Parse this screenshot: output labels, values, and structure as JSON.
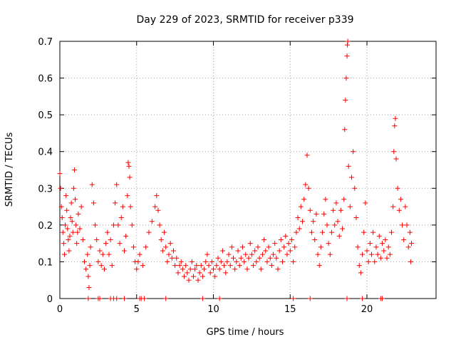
{
  "chart_data": {
    "type": "scatter",
    "title": "Day 229 of 2023, SRMTID for receiver p339",
    "xlabel": "GPS time / hours",
    "ylabel": "SRMTID / TECUs",
    "xlim": [
      0,
      24.5
    ],
    "ylim": [
      0,
      0.7
    ],
    "grid": true,
    "marker": "plus",
    "color": "#ff0000",
    "x_ticks": [
      0,
      5,
      10,
      15,
      20
    ],
    "x_tick_labels": [
      "0",
      "5",
      "10",
      "15",
      "20"
    ],
    "y_ticks": [
      0,
      0.1,
      0.2,
      0.3,
      0.4,
      0.5,
      0.6,
      0.7
    ],
    "y_tick_labels": [
      "0",
      "0.1",
      "0.2",
      "0.3",
      "0.4",
      "0.5",
      "0.6",
      "0.7"
    ],
    "series": [
      {
        "name": "SRMTID",
        "points": [
          [
            0.0,
            0.34
          ],
          [
            0.05,
            0.3
          ],
          [
            0.1,
            0.25
          ],
          [
            0.15,
            0.22
          ],
          [
            0.2,
            0.18
          ],
          [
            0.25,
            0.15
          ],
          [
            0.3,
            0.12
          ],
          [
            0.35,
            0.2
          ],
          [
            0.4,
            0.28
          ],
          [
            0.45,
            0.24
          ],
          [
            0.5,
            0.19
          ],
          [
            0.55,
            0.16
          ],
          [
            0.6,
            0.13
          ],
          [
            0.65,
            0.17
          ],
          [
            0.7,
            0.22
          ],
          [
            0.75,
            0.26
          ],
          [
            0.8,
            0.21
          ],
          [
            0.85,
            0.18
          ],
          [
            0.9,
            0.3
          ],
          [
            0.95,
            0.35
          ],
          [
            1.0,
            0.27
          ],
          [
            1.05,
            0.2
          ],
          [
            1.1,
            0.15
          ],
          [
            1.15,
            0.18
          ],
          [
            1.2,
            0.23
          ],
          [
            1.3,
            0.19
          ],
          [
            1.4,
            0.25
          ],
          [
            1.5,
            0.16
          ],
          [
            1.6,
            0.1
          ],
          [
            1.7,
            0.08
          ],
          [
            1.8,
            0.12
          ],
          [
            1.85,
            0.06
          ],
          [
            1.9,
            0.03
          ],
          [
            1.95,
            0.09
          ],
          [
            2.0,
            0.14
          ],
          [
            2.1,
            0.31
          ],
          [
            2.2,
            0.26
          ],
          [
            2.3,
            0.2
          ],
          [
            2.4,
            0.16
          ],
          [
            2.5,
            0.1
          ],
          [
            2.6,
            0.13
          ],
          [
            2.7,
            0.09
          ],
          [
            2.8,
            0.12
          ],
          [
            2.9,
            0.08
          ],
          [
            3.0,
            0.15
          ],
          [
            3.1,
            0.18
          ],
          [
            3.2,
            0.12
          ],
          [
            3.3,
            0.16
          ],
          [
            3.4,
            0.09
          ],
          [
            3.5,
            0.2
          ],
          [
            3.6,
            0.26
          ],
          [
            3.7,
            0.31
          ],
          [
            3.8,
            0.2
          ],
          [
            3.9,
            0.15
          ],
          [
            4.0,
            0.22
          ],
          [
            4.1,
            0.25
          ],
          [
            4.2,
            0.13
          ],
          [
            4.3,
            0.17
          ],
          [
            4.4,
            0.28
          ],
          [
            4.45,
            0.37
          ],
          [
            4.5,
            0.36
          ],
          [
            4.55,
            0.33
          ],
          [
            4.6,
            0.25
          ],
          [
            4.7,
            0.2
          ],
          [
            4.8,
            0.14
          ],
          [
            4.9,
            0.1
          ],
          [
            5.0,
            0.08
          ],
          [
            5.1,
            0.1
          ],
          [
            5.2,
            0.12
          ],
          [
            5.4,
            0.09
          ],
          [
            5.6,
            0.14
          ],
          [
            5.8,
            0.18
          ],
          [
            6.0,
            0.21
          ],
          [
            6.2,
            0.25
          ],
          [
            6.3,
            0.28
          ],
          [
            6.4,
            0.24
          ],
          [
            6.5,
            0.2
          ],
          [
            6.6,
            0.16
          ],
          [
            6.7,
            0.13
          ],
          [
            6.8,
            0.18
          ],
          [
            6.9,
            0.14
          ],
          [
            7.0,
            0.1
          ],
          [
            7.1,
            0.12
          ],
          [
            7.2,
            0.15
          ],
          [
            7.3,
            0.11
          ],
          [
            7.4,
            0.13
          ],
          [
            7.5,
            0.09
          ],
          [
            7.6,
            0.11
          ],
          [
            7.7,
            0.07
          ],
          [
            7.8,
            0.09
          ],
          [
            7.9,
            0.1
          ],
          [
            8.0,
            0.08
          ],
          [
            8.1,
            0.06
          ],
          [
            8.2,
            0.09
          ],
          [
            8.3,
            0.07
          ],
          [
            8.4,
            0.05
          ],
          [
            8.5,
            0.08
          ],
          [
            8.6,
            0.1
          ],
          [
            8.7,
            0.06
          ],
          [
            8.8,
            0.08
          ],
          [
            8.9,
            0.09
          ],
          [
            9.0,
            0.05
          ],
          [
            9.1,
            0.07
          ],
          [
            9.2,
            0.09
          ],
          [
            9.3,
            0.06
          ],
          [
            9.4,
            0.08
          ],
          [
            9.5,
            0.1
          ],
          [
            9.6,
            0.12
          ],
          [
            9.7,
            0.09
          ],
          [
            9.8,
            0.07
          ],
          [
            9.9,
            0.1
          ],
          [
            10.0,
            0.08
          ],
          [
            10.1,
            0.06
          ],
          [
            10.2,
            0.09
          ],
          [
            10.3,
            0.11
          ],
          [
            10.4,
            0.08
          ],
          [
            10.5,
            0.1
          ],
          [
            10.6,
            0.13
          ],
          [
            10.7,
            0.09
          ],
          [
            10.8,
            0.07
          ],
          [
            10.9,
            0.1
          ],
          [
            11.0,
            0.12
          ],
          [
            11.1,
            0.09
          ],
          [
            11.2,
            0.14
          ],
          [
            11.3,
            0.11
          ],
          [
            11.4,
            0.08
          ],
          [
            11.5,
            0.1
          ],
          [
            11.6,
            0.13
          ],
          [
            11.7,
            0.09
          ],
          [
            11.8,
            0.11
          ],
          [
            11.9,
            0.14
          ],
          [
            12.0,
            0.1
          ],
          [
            12.1,
            0.12
          ],
          [
            12.2,
            0.08
          ],
          [
            12.3,
            0.11
          ],
          [
            12.4,
            0.15
          ],
          [
            12.5,
            0.12
          ],
          [
            12.6,
            0.09
          ],
          [
            12.7,
            0.13
          ],
          [
            12.8,
            0.1
          ],
          [
            12.9,
            0.14
          ],
          [
            13.0,
            0.11
          ],
          [
            13.1,
            0.08
          ],
          [
            13.2,
            0.12
          ],
          [
            13.3,
            0.16
          ],
          [
            13.4,
            0.13
          ],
          [
            13.5,
            0.1
          ],
          [
            13.6,
            0.14
          ],
          [
            13.7,
            0.11
          ],
          [
            13.8,
            0.09
          ],
          [
            13.9,
            0.12
          ],
          [
            14.0,
            0.15
          ],
          [
            14.1,
            0.11
          ],
          [
            14.2,
            0.08
          ],
          [
            14.3,
            0.13
          ],
          [
            14.4,
            0.16
          ],
          [
            14.5,
            0.1
          ],
          [
            14.6,
            0.14
          ],
          [
            14.7,
            0.17
          ],
          [
            14.8,
            0.12
          ],
          [
            14.9,
            0.15
          ],
          [
            15.0,
            0.13
          ],
          [
            15.1,
            0.16
          ],
          [
            15.2,
            0.1
          ],
          [
            15.3,
            0.14
          ],
          [
            15.4,
            0.18
          ],
          [
            15.5,
            0.22
          ],
          [
            15.6,
            0.19
          ],
          [
            15.7,
            0.25
          ],
          [
            15.8,
            0.21
          ],
          [
            15.9,
            0.27
          ],
          [
            16.0,
            0.31
          ],
          [
            16.1,
            0.39
          ],
          [
            16.2,
            0.3
          ],
          [
            16.3,
            0.24
          ],
          [
            16.4,
            0.18
          ],
          [
            16.5,
            0.21
          ],
          [
            16.6,
            0.16
          ],
          [
            16.7,
            0.23
          ],
          [
            16.8,
            0.12
          ],
          [
            16.9,
            0.09
          ],
          [
            17.0,
            0.14
          ],
          [
            17.1,
            0.18
          ],
          [
            17.2,
            0.23
          ],
          [
            17.3,
            0.27
          ],
          [
            17.4,
            0.2
          ],
          [
            17.5,
            0.15
          ],
          [
            17.6,
            0.12
          ],
          [
            17.7,
            0.18
          ],
          [
            17.8,
            0.24
          ],
          [
            17.9,
            0.2
          ],
          [
            18.0,
            0.26
          ],
          [
            18.1,
            0.21
          ],
          [
            18.2,
            0.17
          ],
          [
            18.3,
            0.24
          ],
          [
            18.4,
            0.19
          ],
          [
            18.5,
            0.27
          ],
          [
            18.55,
            0.46
          ],
          [
            18.6,
            0.54
          ],
          [
            18.65,
            0.6
          ],
          [
            18.7,
            0.66
          ],
          [
            18.72,
            0.69
          ],
          [
            18.75,
            0.7
          ],
          [
            18.8,
            0.36
          ],
          [
            18.9,
            0.25
          ],
          [
            19.0,
            0.33
          ],
          [
            19.1,
            0.4
          ],
          [
            19.2,
            0.3
          ],
          [
            19.3,
            0.22
          ],
          [
            19.4,
            0.14
          ],
          [
            19.5,
            0.09
          ],
          [
            19.6,
            0.07
          ],
          [
            19.7,
            0.12
          ],
          [
            19.8,
            0.18
          ],
          [
            19.9,
            0.26
          ],
          [
            20.0,
            0.13
          ],
          [
            20.1,
            0.1
          ],
          [
            20.2,
            0.15
          ],
          [
            20.3,
            0.12
          ],
          [
            20.4,
            0.18
          ],
          [
            20.5,
            0.1
          ],
          [
            20.6,
            0.14
          ],
          [
            20.7,
            0.12
          ],
          [
            20.8,
            0.17
          ],
          [
            20.9,
            0.11
          ],
          [
            21.0,
            0.15
          ],
          [
            21.1,
            0.13
          ],
          [
            21.2,
            0.16
          ],
          [
            21.3,
            0.11
          ],
          [
            21.4,
            0.14
          ],
          [
            21.5,
            0.12
          ],
          [
            21.6,
            0.18
          ],
          [
            21.7,
            0.25
          ],
          [
            21.75,
            0.4
          ],
          [
            21.8,
            0.47
          ],
          [
            21.85,
            0.49
          ],
          [
            21.9,
            0.38
          ],
          [
            22.0,
            0.3
          ],
          [
            22.1,
            0.24
          ],
          [
            22.2,
            0.27
          ],
          [
            22.3,
            0.2
          ],
          [
            22.4,
            0.16
          ],
          [
            22.5,
            0.25
          ],
          [
            22.6,
            0.2
          ],
          [
            22.7,
            0.14
          ],
          [
            22.8,
            0.18
          ],
          [
            22.85,
            0.1
          ],
          [
            22.9,
            0.15
          ]
        ]
      }
    ],
    "zero_points_x": [
      1.85,
      2.5,
      2.6,
      3.3,
      3.5,
      3.7,
      4.2,
      5.2,
      5.3,
      5.5,
      6.9,
      9.3,
      10.4,
      15.2,
      16.3,
      18.7,
      19.7,
      20.9,
      21.0
    ]
  }
}
